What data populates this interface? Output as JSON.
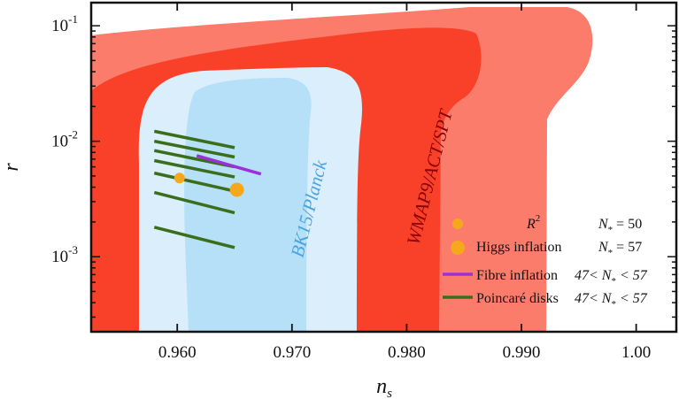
{
  "chart_data": {
    "type": "scatter",
    "xlabel": "n",
    "xlabel_sub": "s",
    "ylabel": "r",
    "xlim": [
      0.9525,
      1.0035
    ],
    "ylim_log10": [
      -3.65,
      -0.8
    ],
    "y_scale": "log",
    "grid": false,
    "x_ticks": [
      0.96,
      0.97,
      0.98,
      0.99,
      1.0
    ],
    "x_tick_labels": [
      "0.960",
      "0.970",
      "0.980",
      "0.990",
      "1.00"
    ],
    "y_ticks": [
      {
        "base": "10",
        "exp": "-1",
        "log10": -1
      },
      {
        "base": "10",
        "exp": "-2",
        "log10": -2
      },
      {
        "base": "10",
        "exp": "-3",
        "log10": -3
      }
    ],
    "region_labels": [
      {
        "text": "WMAP9/ACT/SPT",
        "color": "#8b0000"
      },
      {
        "text": "BK15/Planck",
        "color": "#4aa3e0"
      }
    ],
    "colors": {
      "wmap_2sigma": "#fb7c6b",
      "wmap_1sigma": "#f9412a",
      "bk_2sigma": "#daeefb",
      "bk_1sigma": "#b5e0f7",
      "points": "#f5a81c",
      "fibre": "#9b30d9",
      "poincare": "#3a6e1b"
    },
    "legend": {
      "position": "bottom-right",
      "entries": [
        {
          "label": "R",
          "label_sup": "2",
          "condition": "N",
          "condition_sub": "*",
          "condition_rest": " = 50",
          "marker": "small-dot"
        },
        {
          "label": "Higgs inflation",
          "condition": "N",
          "condition_sub": "*",
          "condition_rest": " = 57",
          "marker": "big-dot"
        },
        {
          "label": "Fibre inflation",
          "condition_pre": "47< ",
          "condition": "N",
          "condition_sub": "*",
          "condition_rest": " < 57",
          "marker": "purple-line"
        },
        {
          "label": "Poincaré disks",
          "condition_pre": "47< ",
          "condition": "N",
          "condition_sub": "*",
          "condition_rest": " < 57",
          "marker": "green-line"
        }
      ]
    },
    "series": [
      {
        "name": "R^2 (N*=50)",
        "kind": "point",
        "points": [
          {
            "x": 0.9602,
            "y": 0.0048
          }
        ]
      },
      {
        "name": "Higgs inflation (N*=57)",
        "kind": "point",
        "points": [
          {
            "x": 0.9652,
            "y": 0.0038
          }
        ]
      },
      {
        "name": "Fibre inflation",
        "kind": "line",
        "points": [
          {
            "x": 0.9617,
            "y": 0.0075
          },
          {
            "x": 0.9673,
            "y": 0.0052
          }
        ]
      },
      {
        "name": "Poincaré disks",
        "kind": "segments",
        "segments": [
          [
            {
              "x": 0.958,
              "y": 0.0122
            },
            {
              "x": 0.965,
              "y": 0.0088
            }
          ],
          [
            {
              "x": 0.958,
              "y": 0.01
            },
            {
              "x": 0.965,
              "y": 0.0073
            }
          ],
          [
            {
              "x": 0.958,
              "y": 0.0083
            },
            {
              "x": 0.965,
              "y": 0.006
            }
          ],
          [
            {
              "x": 0.958,
              "y": 0.0068
            },
            {
              "x": 0.965,
              "y": 0.0049
            }
          ],
          [
            {
              "x": 0.958,
              "y": 0.0053
            },
            {
              "x": 0.965,
              "y": 0.0037
            }
          ],
          [
            {
              "x": 0.958,
              "y": 0.0036
            },
            {
              "x": 0.965,
              "y": 0.0024
            }
          ],
          [
            {
              "x": 0.958,
              "y": 0.0018
            },
            {
              "x": 0.965,
              "y": 0.0012
            }
          ]
        ]
      }
    ]
  }
}
